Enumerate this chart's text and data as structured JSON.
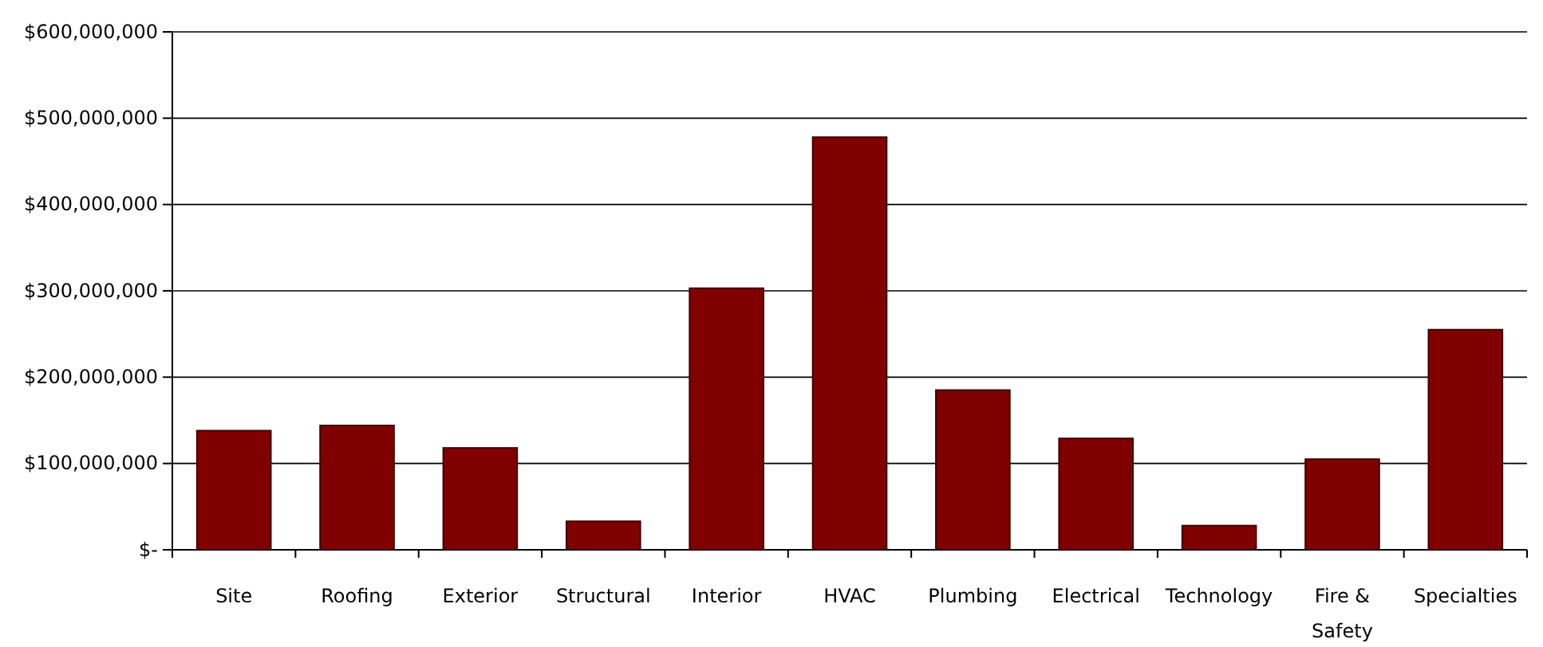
{
  "chart_data": {
    "type": "bar",
    "categories": [
      "Site",
      "Roofing",
      "Exterior",
      "Structural",
      "Interior",
      "HVAC",
      "Plumbing",
      "Electrical",
      "Technology",
      "Fire & Safety",
      "Specialties"
    ],
    "values": [
      138000000,
      144000000,
      118000000,
      33000000,
      303000000,
      478000000,
      185000000,
      129000000,
      28000000,
      105000000,
      255000000
    ],
    "color": "#800000",
    "ylim": [
      0,
      600000000
    ],
    "yticks": [
      {
        "value": 0,
        "label": "$-"
      },
      {
        "value": 100000000,
        "label": "$100,000,000"
      },
      {
        "value": 200000000,
        "label": "$200,000,000"
      },
      {
        "value": 300000000,
        "label": "$300,000,000"
      },
      {
        "value": 400000000,
        "label": "$400,000,000"
      },
      {
        "value": 500000000,
        "label": "$500,000,000"
      },
      {
        "value": 600000000,
        "label": "$600,000,000"
      }
    ],
    "grid": "y"
  }
}
